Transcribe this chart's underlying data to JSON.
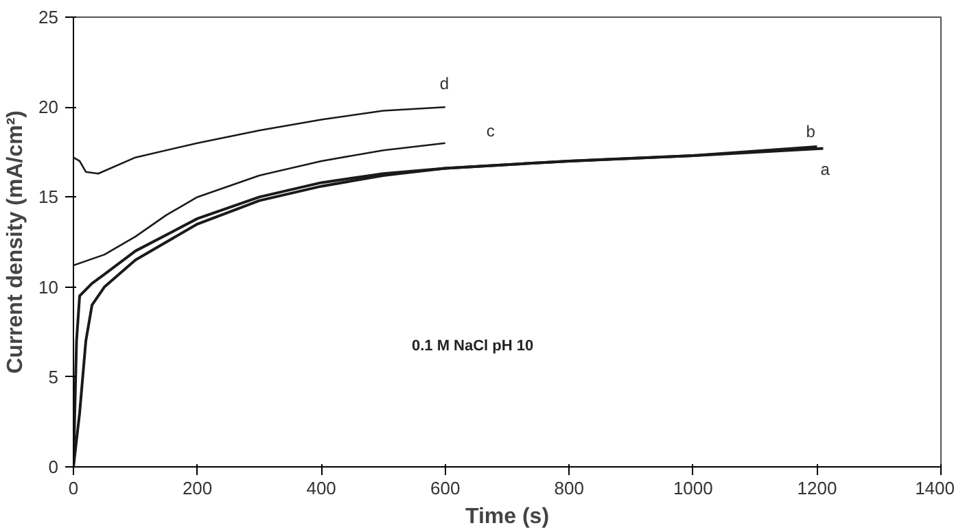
{
  "chart_data": {
    "type": "line",
    "xlabel": "Time (s)",
    "ylabel": "Current density (mA/cm²)",
    "xlim": [
      0,
      1400
    ],
    "ylim": [
      0,
      25
    ],
    "xticks": [
      0,
      200,
      400,
      600,
      800,
      1000,
      1200,
      1400
    ],
    "yticks": [
      0,
      5,
      10,
      15,
      20,
      25
    ],
    "grid": false,
    "marker": "none",
    "line_style": "solid",
    "annotations": [
      "0.1 M NaCl pH 10"
    ],
    "series": [
      {
        "name": "a",
        "color": "#1a1a1a",
        "x": [
          0,
          10,
          20,
          30,
          50,
          100,
          200,
          300,
          400,
          500,
          600,
          800,
          1000,
          1210
        ],
        "values": [
          0,
          3,
          7,
          9,
          10,
          11.5,
          13.5,
          14.8,
          15.6,
          16.2,
          16.6,
          17,
          17.3,
          17.7
        ]
      },
      {
        "name": "b",
        "color": "#1a1a1a",
        "x": [
          0,
          5,
          10,
          30,
          50,
          100,
          200,
          300,
          400,
          500,
          600,
          800,
          1000,
          1200
        ],
        "values": [
          0,
          7,
          9.5,
          10.2,
          10.7,
          12,
          13.8,
          15,
          15.8,
          16.3,
          16.6,
          17,
          17.3,
          17.8
        ]
      },
      {
        "name": "c",
        "color": "#1a1a1a",
        "x": [
          0,
          50,
          100,
          150,
          200,
          300,
          400,
          500,
          600
        ],
        "values": [
          11.2,
          11.8,
          12.8,
          14,
          15,
          16.2,
          17,
          17.6,
          18
        ]
      },
      {
        "name": "d",
        "color": "#1a1a1a",
        "x": [
          0,
          10,
          20,
          40,
          100,
          200,
          300,
          400,
          500,
          600
        ],
        "values": [
          17.2,
          17,
          16.4,
          16.3,
          17.2,
          18,
          18.7,
          19.3,
          19.8,
          20
        ]
      }
    ]
  }
}
